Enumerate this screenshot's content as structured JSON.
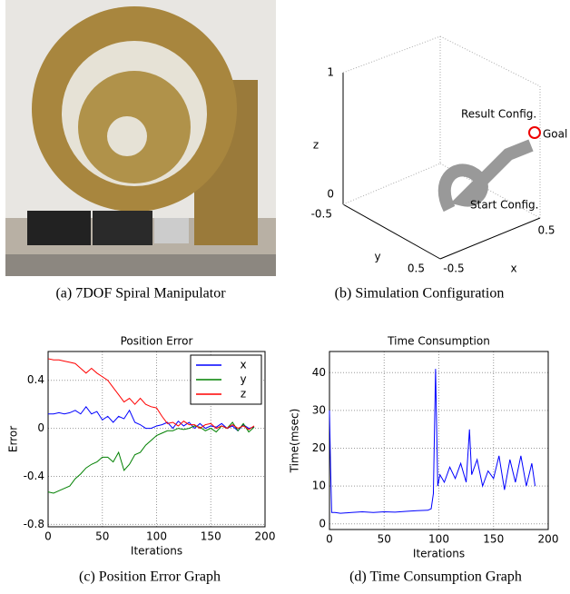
{
  "photo": {
    "caption": "(a) 7DOF Spiral Manipulator"
  },
  "simulation": {
    "caption": "(b) Simulation Configuration",
    "z_label": "z",
    "y_label": "y",
    "x_label": "x",
    "z_ticks": [
      "1",
      "0"
    ],
    "y_ticks": [
      "-0.5",
      "0.5"
    ],
    "x_ticks": [
      "-0.5",
      "0.5"
    ],
    "annotations": {
      "result": "Result Config.",
      "goal": "Goal",
      "start": "Start Config."
    }
  },
  "chart_data": [
    {
      "type": "line",
      "title": "Position Error",
      "caption": "(c) Position Error Graph",
      "x_label": "Iterations",
      "y_label": "Error",
      "x": [
        0,
        5,
        10,
        15,
        20,
        25,
        30,
        35,
        40,
        45,
        50,
        55,
        60,
        65,
        70,
        75,
        80,
        85,
        90,
        95,
        100,
        105,
        110,
        115,
        120,
        125,
        130,
        135,
        140,
        145,
        150,
        155,
        160,
        165,
        170,
        175,
        180,
        185,
        190
      ],
      "series": [
        {
          "name": "x",
          "color": "#0000ff",
          "values": [
            0.12,
            0.12,
            0.13,
            0.12,
            0.13,
            0.15,
            0.12,
            0.18,
            0.12,
            0.14,
            0.07,
            0.1,
            0.05,
            0.1,
            0.08,
            0.15,
            0.05,
            0.03,
            0.0,
            0.0,
            0.02,
            0.03,
            0.05,
            0.0,
            0.06,
            0.02,
            0.05,
            0.0,
            0.04,
            0.0,
            0.02,
            0.01,
            0.04,
            0.0,
            0.02,
            -0.02,
            0.03,
            0.0,
            0.01
          ]
        },
        {
          "name": "y",
          "color": "#008000",
          "values": [
            -0.53,
            -0.54,
            -0.52,
            -0.5,
            -0.48,
            -0.42,
            -0.38,
            -0.33,
            -0.3,
            -0.28,
            -0.24,
            -0.24,
            -0.28,
            -0.2,
            -0.35,
            -0.3,
            -0.22,
            -0.2,
            -0.14,
            -0.1,
            -0.06,
            -0.04,
            -0.02,
            -0.02,
            0.0,
            -0.01,
            0.0,
            0.02,
            0.01,
            -0.02,
            0.0,
            -0.03,
            0.02,
            0.0,
            0.05,
            -0.02,
            0.04,
            -0.03,
            0.01
          ]
        },
        {
          "name": "z",
          "color": "#ff0000",
          "values": [
            0.58,
            0.57,
            0.57,
            0.56,
            0.55,
            0.54,
            0.5,
            0.46,
            0.5,
            0.46,
            0.43,
            0.4,
            0.34,
            0.28,
            0.22,
            0.25,
            0.2,
            0.25,
            0.2,
            0.18,
            0.17,
            0.1,
            0.04,
            0.05,
            0.02,
            0.06,
            0.03,
            0.03,
            0.0,
            0.03,
            0.04,
            0.0,
            0.02,
            0.0,
            0.03,
            0.0,
            0.02,
            -0.01,
            0.02
          ]
        }
      ],
      "xlim": [
        0,
        200
      ],
      "xticks": [
        0,
        50,
        100,
        150,
        200
      ],
      "ylim": [
        -0.82,
        0.64
      ],
      "yticks": [
        -0.8,
        -0.4,
        0,
        0.4
      ],
      "grid": true,
      "legend": "upper right"
    },
    {
      "type": "line",
      "title": "Time Consumption",
      "caption": "(d) Time Consumption Graph",
      "x_label": "Iterations",
      "y_label": "Time(msec)",
      "x": [
        0,
        1,
        2,
        5,
        10,
        20,
        30,
        40,
        50,
        60,
        70,
        80,
        90,
        93,
        95,
        97,
        99,
        101,
        105,
        110,
        115,
        120,
        125,
        128,
        130,
        135,
        140,
        145,
        150,
        155,
        160,
        165,
        170,
        175,
        180,
        185,
        188
      ],
      "series": [
        {
          "color": "#0000ff",
          "values": [
            30,
            15,
            3,
            3,
            2.8,
            3,
            3.2,
            3,
            3.2,
            3.1,
            3.3,
            3.5,
            3.6,
            4,
            8,
            41,
            10,
            13,
            11,
            15,
            12,
            16,
            11,
            25,
            13,
            17,
            10,
            14,
            12,
            18,
            9,
            17,
            11,
            18,
            10,
            16,
            10
          ]
        }
      ],
      "xlim": [
        0,
        200
      ],
      "xticks": [
        0,
        50,
        100,
        150,
        200
      ],
      "ylim": [
        -1.5,
        45.6
      ],
      "yticks": [
        0,
        10,
        20,
        30,
        40
      ],
      "grid": true,
      "legend": "none"
    }
  ]
}
